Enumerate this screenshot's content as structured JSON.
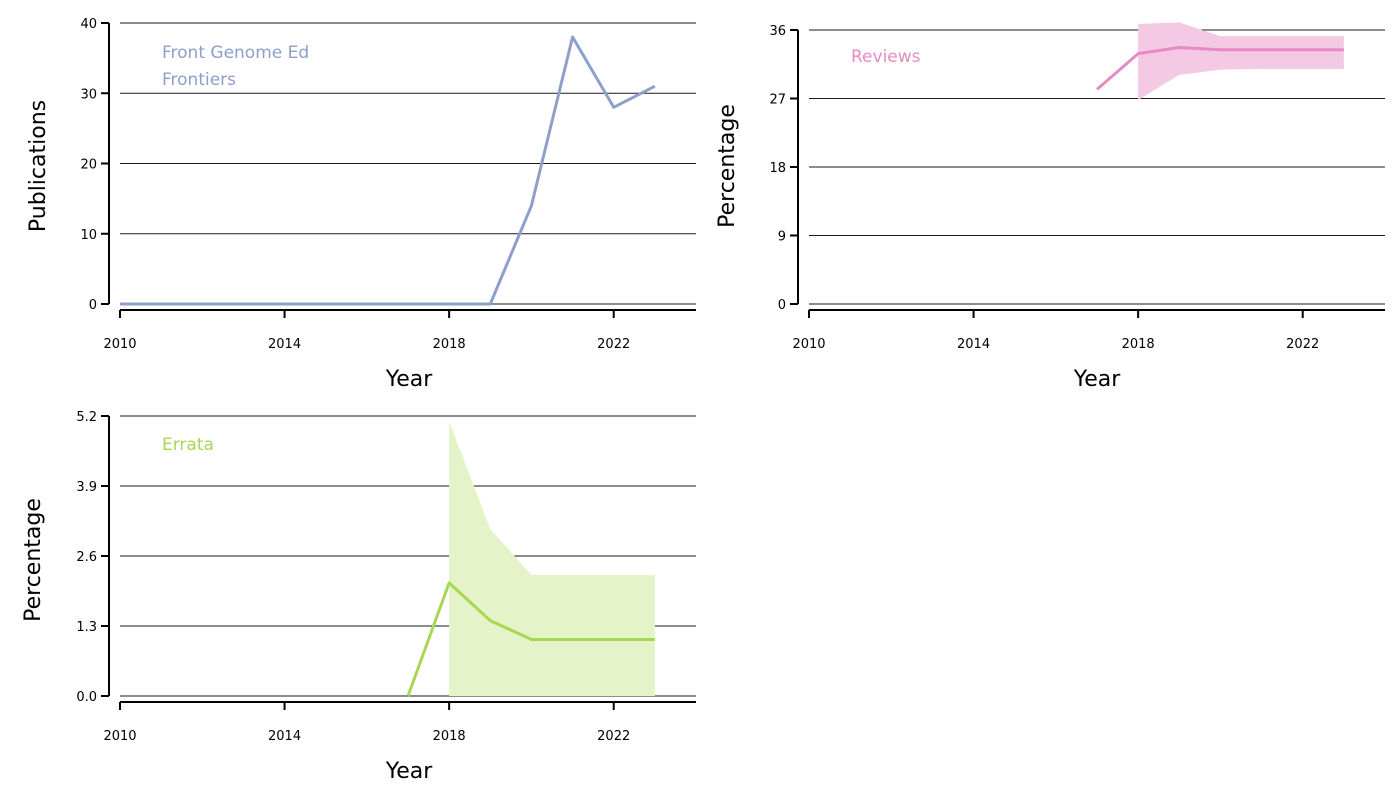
{
  "chart_data": [
    {
      "type": "line",
      "title": "",
      "xlabel": "Year",
      "ylabel": "Publications",
      "xlim": [
        2010,
        2024
      ],
      "ylim": [
        0,
        40
      ],
      "xticks": [
        2010,
        2014,
        2018,
        2022
      ],
      "yticks": [
        "0",
        "10",
        "20",
        "30",
        "40"
      ],
      "grid": "horizontal",
      "annotation": [
        "Front Genome Ed",
        "Frontiers"
      ],
      "color": "#8DA0CB",
      "series": [
        {
          "x": [
            2010,
            2011,
            2012,
            2013,
            2014,
            2015,
            2016,
            2017,
            2018,
            2019,
            2020,
            2021,
            2022,
            2023
          ],
          "values": [
            0,
            0,
            0,
            0,
            0,
            0,
            0,
            0,
            0,
            0,
            14,
            38,
            28,
            31
          ]
        }
      ]
    },
    {
      "type": "line",
      "title": "",
      "xlabel": "Year",
      "ylabel": "Percentage",
      "xlim": [
        2010,
        2024
      ],
      "ylim": [
        0,
        36
      ],
      "xticks": [
        2010,
        2014,
        2018,
        2022
      ],
      "yticks": [
        "0",
        "9",
        "18",
        "27",
        "36"
      ],
      "grid": "horizontal",
      "annotation": [
        "Reviews"
      ],
      "color": "#E78AC3",
      "band_color": "#F4C9E4",
      "series": [
        {
          "x": [
            2017,
            2018,
            2019,
            2020,
            2021,
            2022,
            2023
          ],
          "values": [
            28.2,
            32.9,
            33.7,
            33.4,
            33.4,
            33.4,
            33.4
          ]
        }
      ],
      "band": {
        "x": [
          2018,
          2019,
          2020,
          2021,
          2022,
          2023
        ],
        "lower": [
          26.8,
          30.1,
          30.8,
          30.9,
          30.9,
          30.9
        ],
        "upper": [
          36.8,
          37.0,
          35.2,
          35.2,
          35.2,
          35.2
        ]
      }
    },
    {
      "type": "line",
      "title": "",
      "xlabel": "Year",
      "ylabel": "Percentage",
      "xlim": [
        2010,
        2024
      ],
      "ylim": [
        0,
        5.2
      ],
      "xticks": [
        2010,
        2014,
        2018,
        2022
      ],
      "yticks": [
        "0.0",
        "1.3",
        "2.6",
        "3.9",
        "5.2"
      ],
      "grid": "horizontal",
      "annotation": [
        "Errata"
      ],
      "color": "#A6D854",
      "band_color": "#E5F4C8",
      "series": [
        {
          "x": [
            2017,
            2018,
            2019,
            2020,
            2021,
            2022,
            2023
          ],
          "values": [
            0,
            2.1,
            1.4,
            1.05,
            1.05,
            1.05,
            1.05
          ]
        }
      ],
      "band": {
        "x": [
          2018,
          2019,
          2020,
          2021,
          2022,
          2023
        ],
        "lower": [
          0,
          0,
          0,
          0,
          0,
          0
        ],
        "upper": [
          5.1,
          3.1,
          2.25,
          2.25,
          2.25,
          2.25
        ]
      }
    }
  ]
}
